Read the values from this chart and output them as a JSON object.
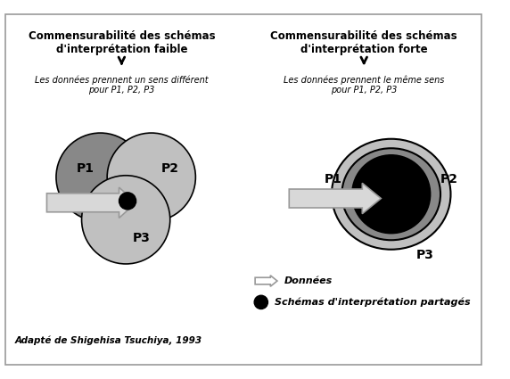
{
  "title_left_line1": "Commensurabilité des schémas",
  "title_left_line2": "d'interprétation faible",
  "title_right_line1": "Commensurabilité des schémas",
  "title_right_line2": "d'interprétation forte",
  "subtitle_left_line1": "Les données prennent un sens différent",
  "subtitle_left_line2": "pour P1, P2, P3",
  "subtitle_right_line1": "Les données prennent le même sens",
  "subtitle_right_line2": "pour P1, P2, P3",
  "label_P1_left": "P1",
  "label_P2_left": "P2",
  "label_P3_left": "P3",
  "label_P1_right": "P1",
  "label_P2_right": "P2",
  "label_P3_right": "P3",
  "legend_arrow_label": "Données",
  "legend_circle_label": "Schémas d'interprétation partagés",
  "credit": "Adapté de Shigehisa Tsuchiya, 1993",
  "bg_color": "#ffffff",
  "border_color": "#999999",
  "circle_gray_light": "#c0c0c0",
  "circle_gray_dark": "#888888",
  "circle_black": "#0a0a0a",
  "arrow_fill": "#d8d8d8",
  "arrow_edge": "#999999"
}
